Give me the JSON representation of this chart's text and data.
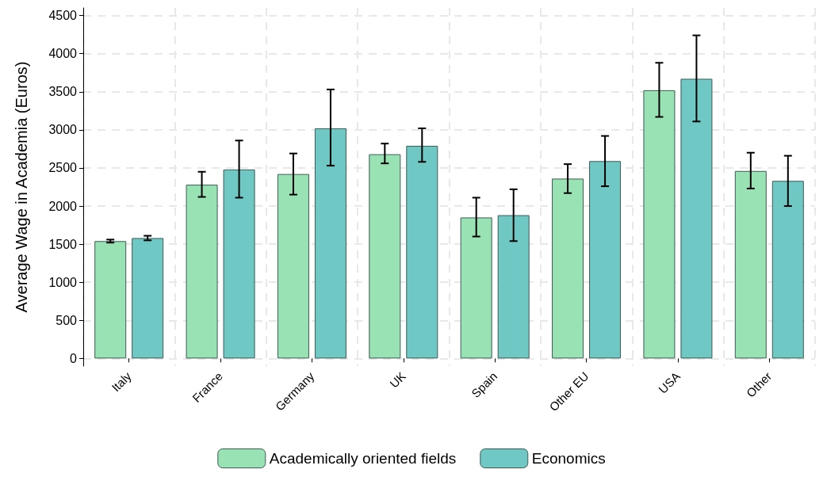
{
  "chart_data": {
    "type": "bar",
    "ylabel": "Average Wage in Academia (Euros)",
    "categories": [
      "Italy",
      "France",
      "Germany",
      "UK",
      "Spain",
      "Other EU",
      "USA",
      "Other"
    ],
    "series": [
      {
        "name": "Academically oriented fields",
        "color": "#98e2b4",
        "values": [
          1540,
          2280,
          2420,
          2680,
          1850,
          2360,
          3520,
          2460
        ],
        "errors": [
          [
            1520,
            1560
          ],
          [
            2120,
            2450
          ],
          [
            2150,
            2690
          ],
          [
            2560,
            2820
          ],
          [
            1600,
            2110
          ],
          [
            2170,
            2550
          ],
          [
            3170,
            3880
          ],
          [
            2230,
            2700
          ]
        ]
      },
      {
        "name": "Economics",
        "color": "#6fc8c4",
        "values": [
          1580,
          2480,
          3020,
          2790,
          1880,
          2590,
          3670,
          2330
        ],
        "errors": [
          [
            1550,
            1610
          ],
          [
            2110,
            2860
          ],
          [
            2530,
            3530
          ],
          [
            2580,
            3020
          ],
          [
            1540,
            2220
          ],
          [
            2260,
            2920
          ],
          [
            3110,
            4240
          ],
          [
            2000,
            2660
          ]
        ]
      }
    ],
    "ylim": [
      -100,
      4600
    ],
    "yticks": [
      0,
      500,
      1000,
      1500,
      2000,
      2500,
      3000,
      3500,
      4000,
      4500
    ],
    "grid": true,
    "legend": "bottom"
  }
}
